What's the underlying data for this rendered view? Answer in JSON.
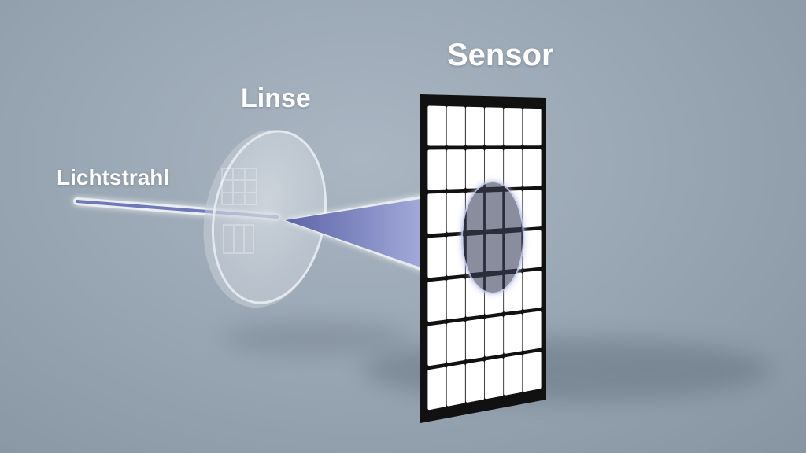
{
  "labels": {
    "sensor": "Sensor",
    "linse": "Linse",
    "lichtstrahl": "Lichtstrahl"
  },
  "colors": {
    "background": "#9aa7b4",
    "beam": "#6f78b8",
    "beam_glow": "#e9eefc",
    "sensor_frame": "#111111",
    "sensor_cell": "#ffffff"
  },
  "sensor_grid": {
    "rows": 7,
    "cols": 6
  }
}
